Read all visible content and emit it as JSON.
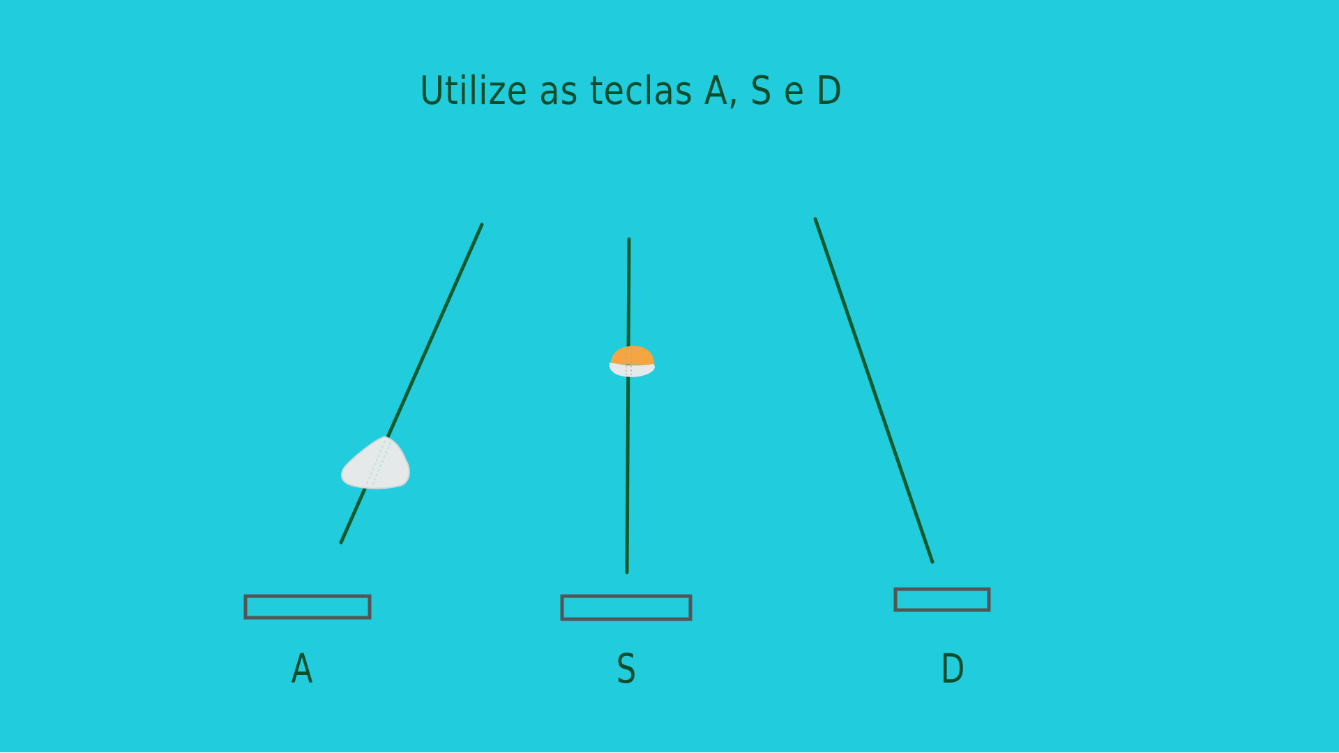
{
  "background_color": "#21ccdd",
  "instructions": "Utilize as teclas A, S e D",
  "keys": [
    {
      "label": "A"
    },
    {
      "label": "S"
    },
    {
      "label": "D"
    }
  ],
  "colors": {
    "track": "#0e5a2c",
    "pad_outline": "#555555",
    "text": "#0e4d2c",
    "note_white": "#e6e9ea",
    "note_orange": "#f5a541"
  }
}
